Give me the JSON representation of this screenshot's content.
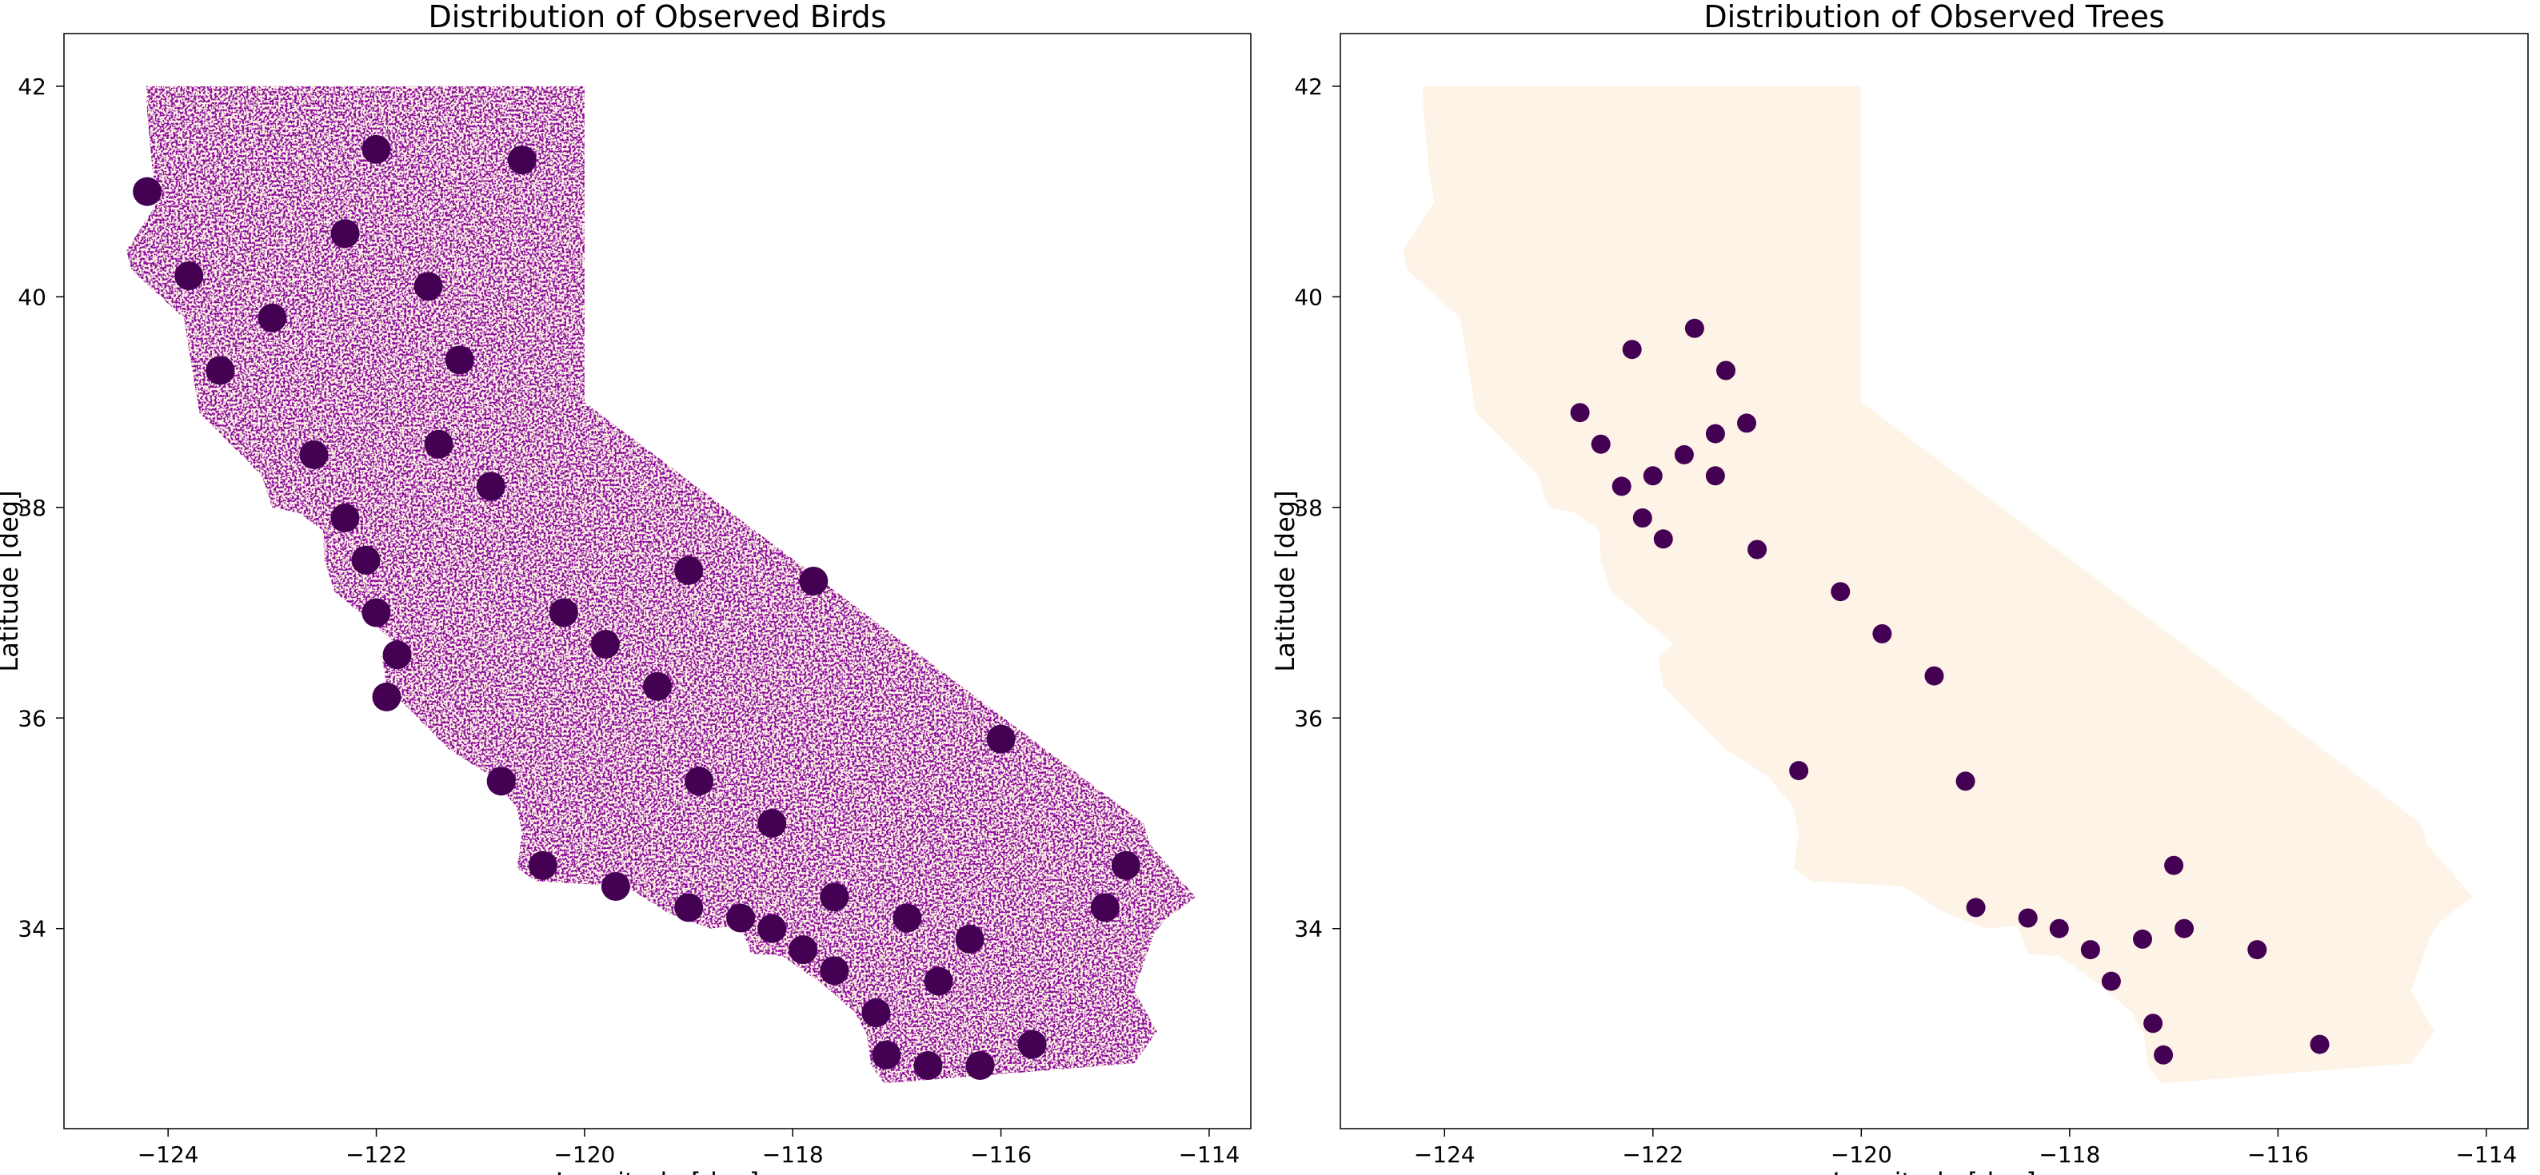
{
  "chart_data": [
    {
      "type": "scatter",
      "title": "Distribution of Observed Birds",
      "xlabel": "Longitude [deg]",
      "ylabel": "Latitude [deg]",
      "xlim": [
        -125.0,
        -113.6
      ],
      "ylim": [
        32.1,
        42.5
      ],
      "xticks": [
        -124,
        -122,
        -120,
        -118,
        -116,
        -114
      ],
      "xtick_labels": [
        "−124",
        "−122",
        "−120",
        "−118",
        "−116",
        "−114"
      ],
      "yticks": [
        34,
        36,
        38,
        40,
        42
      ],
      "ytick_labels": [
        "34",
        "36",
        "38",
        "40",
        "42"
      ],
      "grid": false,
      "background_region": "California state area (light beige)",
      "presence_color": "#440154",
      "absence_color": "#fdf3e6",
      "series": [
        {
          "name": "observed_clusters",
          "points": [
            [
              -124.2,
              41.0
            ],
            [
              -123.8,
              40.2
            ],
            [
              -123.5,
              39.3
            ],
            [
              -122.6,
              38.5
            ],
            [
              -122.3,
              37.9
            ],
            [
              -122.1,
              37.5
            ],
            [
              -122.0,
              37.0
            ],
            [
              -121.8,
              36.6
            ],
            [
              -121.9,
              36.2
            ],
            [
              -120.8,
              35.4
            ],
            [
              -120.4,
              34.6
            ],
            [
              -119.7,
              34.4
            ],
            [
              -119.0,
              34.2
            ],
            [
              -118.5,
              34.1
            ],
            [
              -118.2,
              34.0
            ],
            [
              -117.9,
              33.8
            ],
            [
              -117.6,
              33.6
            ],
            [
              -117.2,
              33.2
            ],
            [
              -117.1,
              32.8
            ],
            [
              -116.7,
              32.7
            ],
            [
              -116.2,
              32.7
            ],
            [
              -115.7,
              32.9
            ],
            [
              -117.6,
              34.3
            ],
            [
              -116.9,
              34.1
            ],
            [
              -116.3,
              33.9
            ],
            [
              -116.6,
              33.5
            ],
            [
              -121.4,
              38.6
            ],
            [
              -121.2,
              39.4
            ],
            [
              -122.3,
              40.6
            ],
            [
              -121.5,
              40.1
            ],
            [
              -120.9,
              38.2
            ],
            [
              -119.8,
              36.7
            ],
            [
              -119.3,
              36.3
            ],
            [
              -118.9,
              35.4
            ],
            [
              -120.6,
              41.3
            ],
            [
              -122.0,
              41.4
            ],
            [
              -123.0,
              39.8
            ],
            [
              -120.2,
              37.0
            ],
            [
              -119.0,
              37.4
            ],
            [
              -118.2,
              35.0
            ],
            [
              -115.0,
              34.2
            ],
            [
              -114.8,
              34.6
            ],
            [
              -117.8,
              37.3
            ],
            [
              -116.0,
              35.8
            ]
          ]
        }
      ]
    },
    {
      "type": "scatter",
      "title": "Distribution of Observed Trees",
      "xlabel": "Longitude [deg]",
      "ylabel": "Latitude [deg]",
      "xlim": [
        -125.0,
        -113.6
      ],
      "ylim": [
        32.1,
        42.5
      ],
      "xticks": [
        -124,
        -122,
        -120,
        -118,
        -116,
        -114
      ],
      "xtick_labels": [
        "−124",
        "−122",
        "−120",
        "−118",
        "−116",
        "−114"
      ],
      "yticks": [
        34,
        36,
        38,
        40,
        42
      ],
      "ytick_labels": [
        "34",
        "36",
        "38",
        "40",
        "42"
      ],
      "grid": false,
      "background_region": "California state area (light beige)",
      "presence_color": "#440154",
      "absence_color": "#fdf3e6",
      "series": [
        {
          "name": "observed_clusters",
          "points": [
            [
              -121.4,
              38.7
            ],
            [
              -121.1,
              38.8
            ],
            [
              -121.7,
              38.5
            ],
            [
              -122.0,
              38.3
            ],
            [
              -122.3,
              38.2
            ],
            [
              -122.1,
              37.9
            ],
            [
              -121.9,
              37.7
            ],
            [
              -122.5,
              38.6
            ],
            [
              -122.7,
              38.9
            ],
            [
              -121.4,
              38.3
            ],
            [
              -121.0,
              37.6
            ],
            [
              -120.2,
              37.2
            ],
            [
              -119.8,
              36.8
            ],
            [
              -119.3,
              36.4
            ],
            [
              -120.6,
              35.5
            ],
            [
              -118.4,
              34.1
            ],
            [
              -118.1,
              34.0
            ],
            [
              -117.8,
              33.8
            ],
            [
              -117.6,
              33.5
            ],
            [
              -117.2,
              33.1
            ],
            [
              -117.1,
              32.8
            ],
            [
              -117.3,
              33.9
            ],
            [
              -116.9,
              34.0
            ],
            [
              -116.2,
              33.8
            ],
            [
              -117.0,
              34.6
            ],
            [
              -118.9,
              34.2
            ],
            [
              -121.6,
              39.7
            ],
            [
              -121.3,
              39.3
            ],
            [
              -122.2,
              39.5
            ],
            [
              -119.0,
              35.4
            ],
            [
              -115.6,
              32.9
            ]
          ]
        }
      ]
    }
  ]
}
